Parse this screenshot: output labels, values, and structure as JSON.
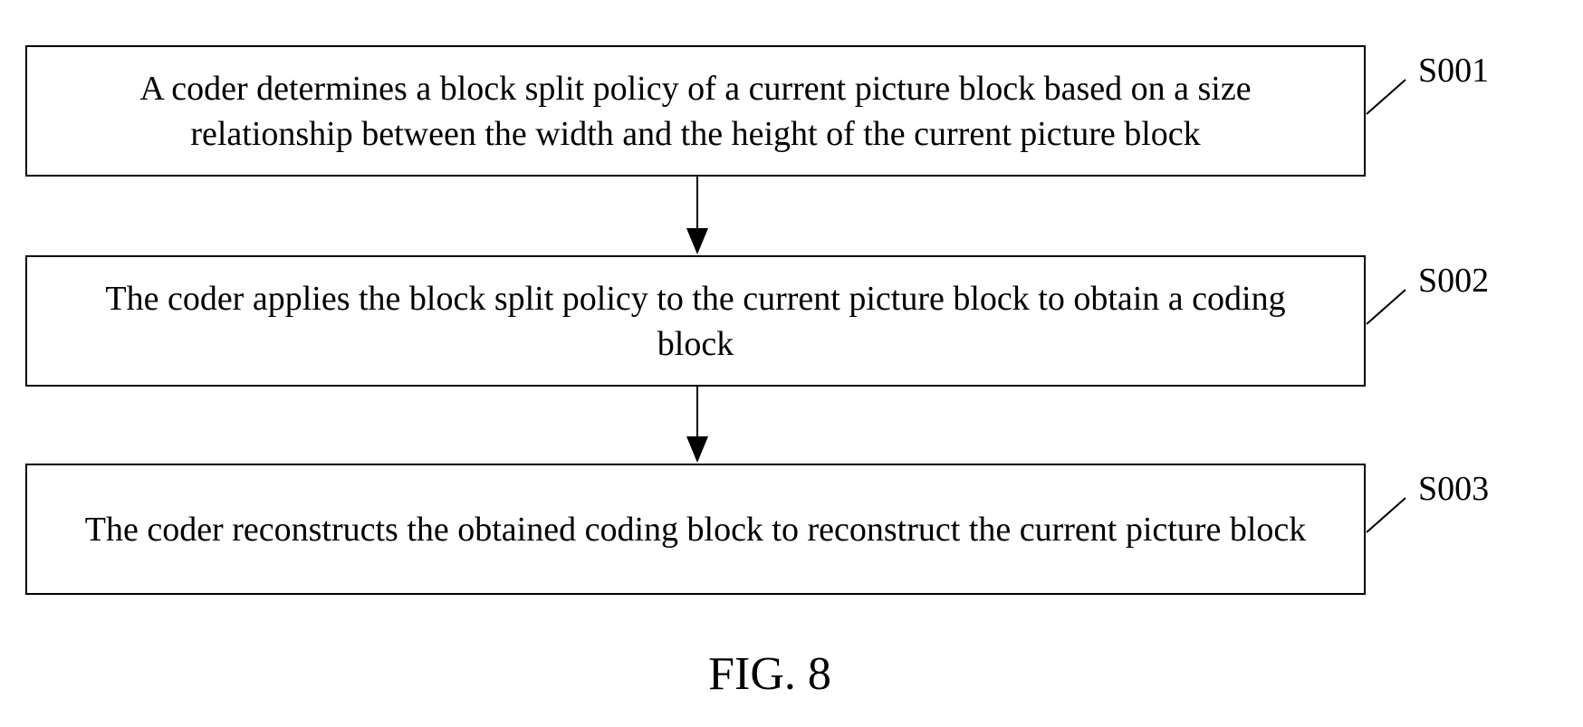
{
  "steps": [
    {
      "label": "S001",
      "text": "A coder determines a block split policy of a current picture block based on a size relationship between the width and the height of the current picture block"
    },
    {
      "label": "S002",
      "text": "The coder applies the block split policy to the current picture block to obtain a coding block"
    },
    {
      "label": "S003",
      "text": "The coder reconstructs the obtained coding block to reconstruct the current picture block"
    }
  ],
  "caption": "FIG. 8"
}
